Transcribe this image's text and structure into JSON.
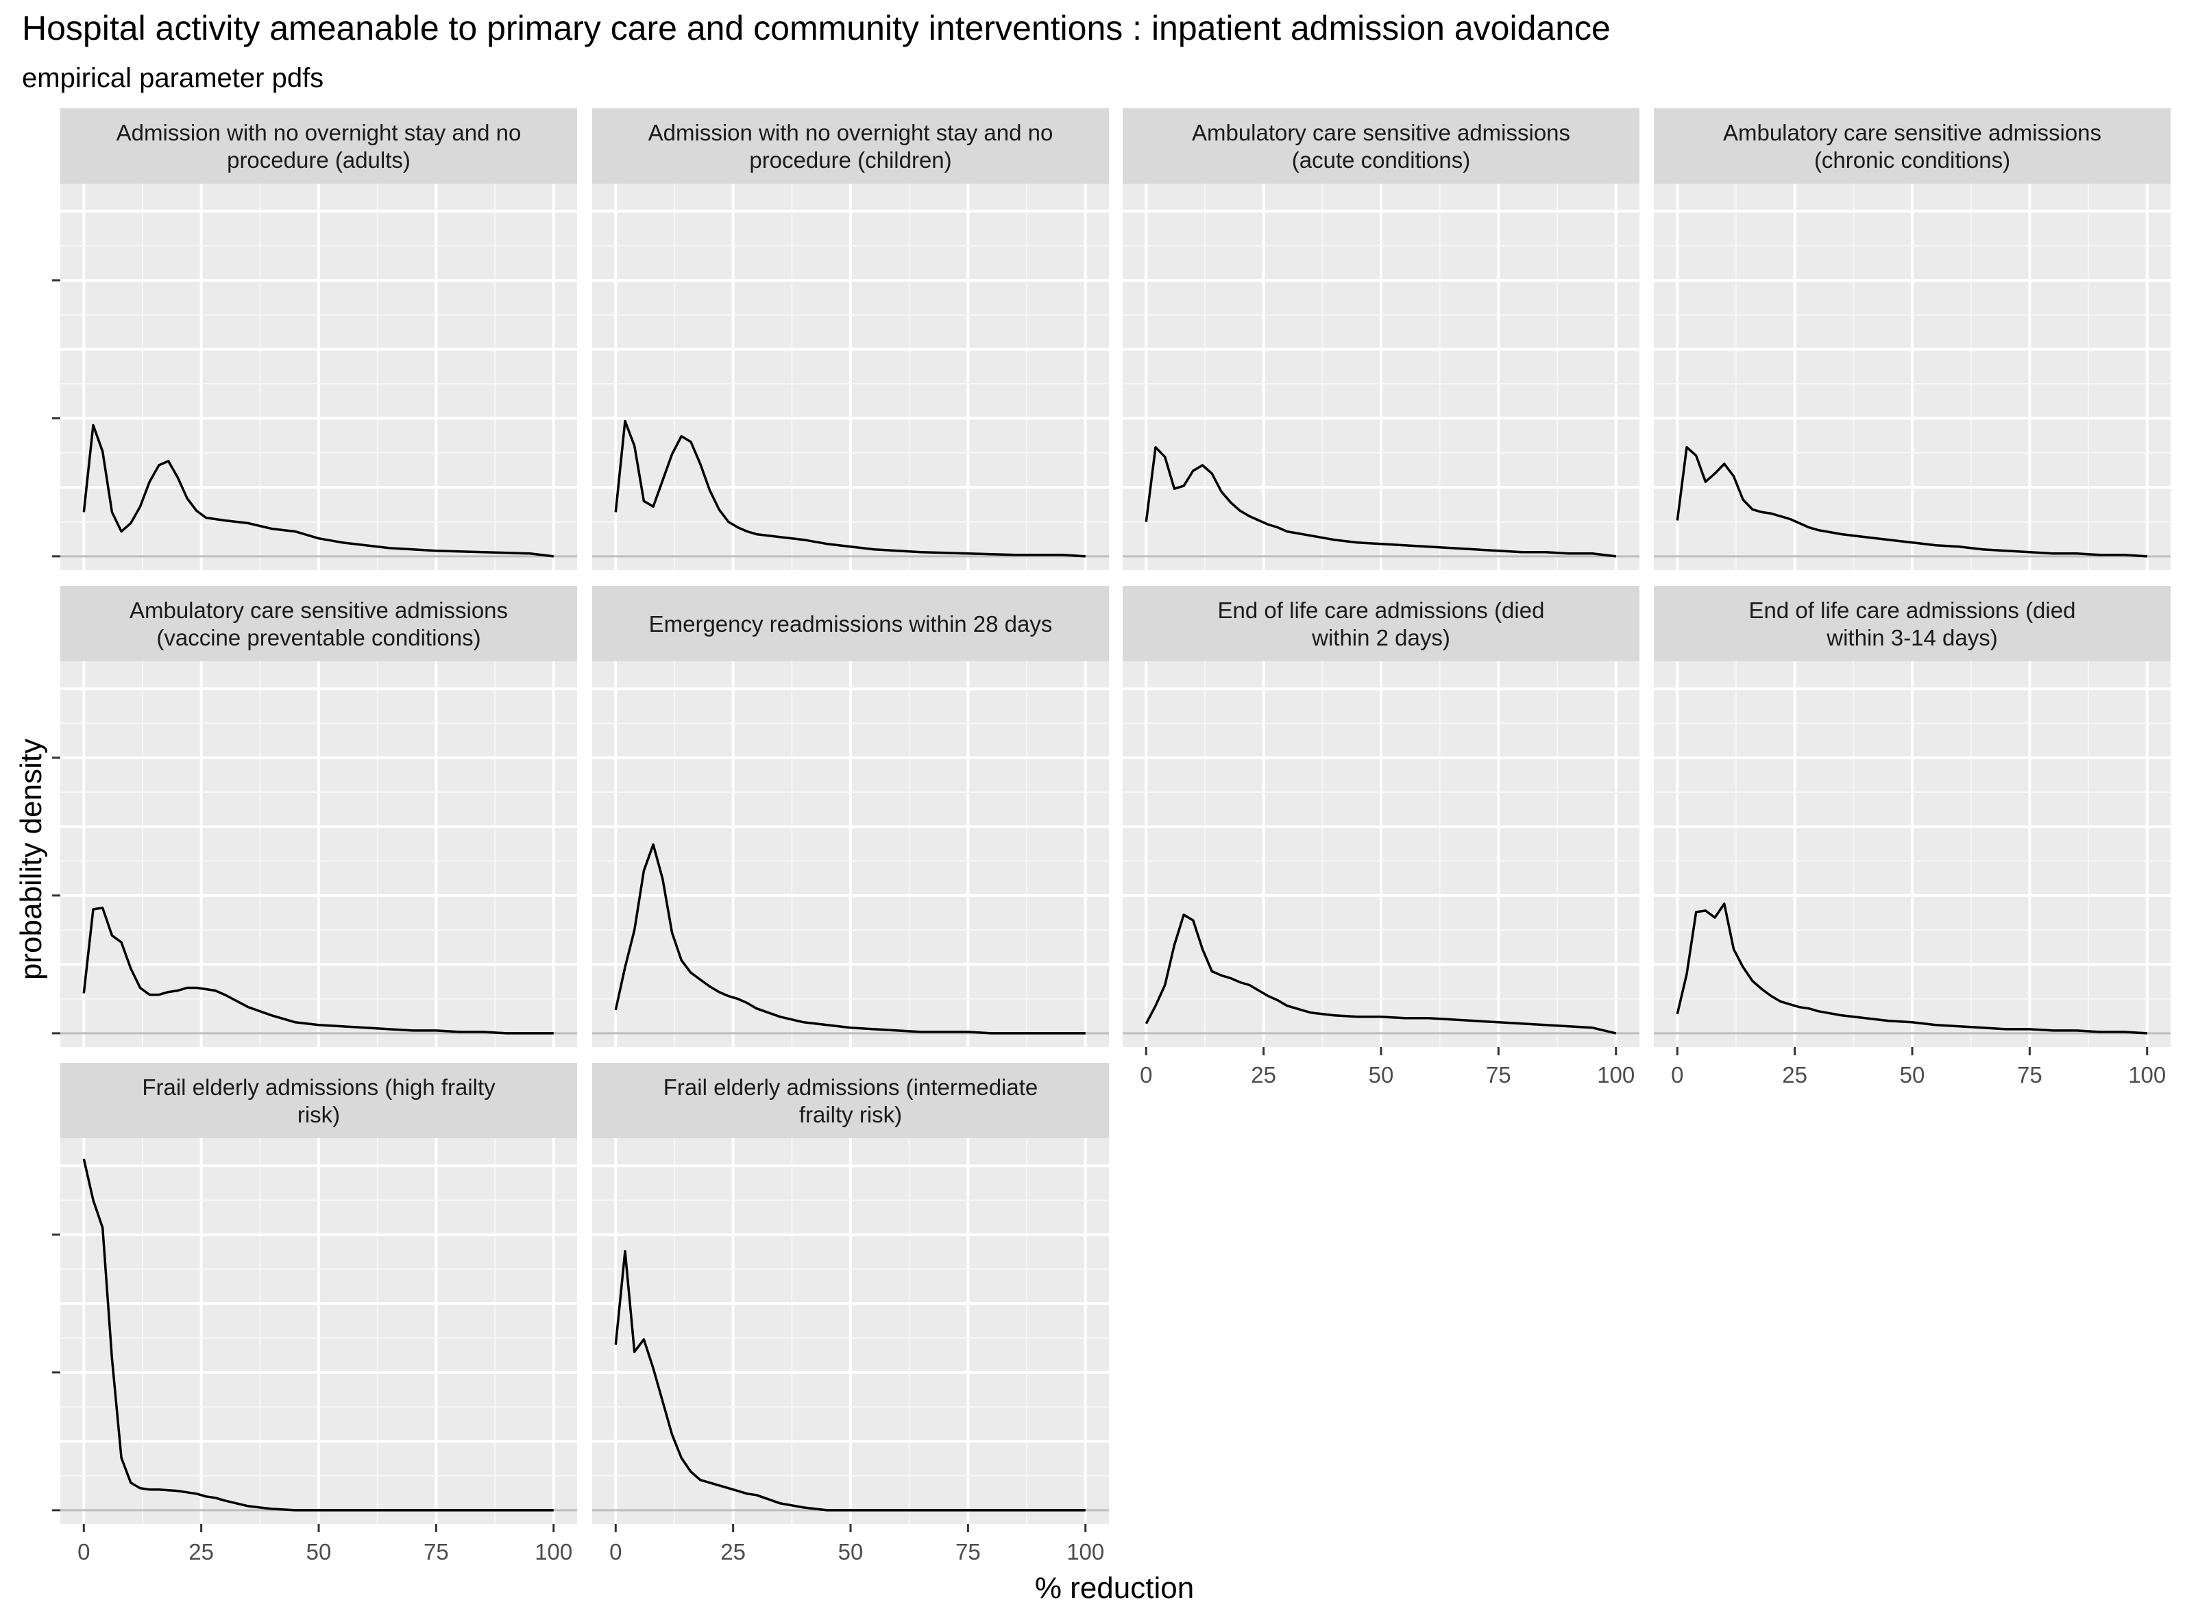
{
  "chart_data": {
    "type": "line",
    "title": "Hospital activity ameanable to primary care and community interventions : inpatient admission avoidance",
    "subtitle": "empirical parameter pdfs",
    "xlabel": "% reduction",
    "ylabel": "probability density",
    "xlim": [
      0,
      100
    ],
    "x_ticks": [
      0,
      25,
      50,
      75,
      100
    ],
    "x_tick_labels": [
      "0",
      "25",
      "50",
      "75",
      "100"
    ],
    "y_tick_labels_shown": false,
    "grid": true,
    "ncol": 4,
    "panels": [
      {
        "strip": [
          "Admission with no overnight stay and no",
          "procedure (adults)"
        ],
        "ylim": [
          -0.1,
          2.7
        ],
        "x": [
          0,
          2,
          4,
          6,
          8,
          10,
          12,
          14,
          16,
          18,
          20,
          22,
          24,
          26,
          28,
          30,
          35,
          40,
          45,
          50,
          55,
          60,
          65,
          70,
          75,
          80,
          85,
          90,
          95,
          100
        ],
        "y": [
          0.32,
          0.95,
          0.76,
          0.32,
          0.18,
          0.24,
          0.36,
          0.54,
          0.66,
          0.69,
          0.57,
          0.42,
          0.33,
          0.28,
          0.27,
          0.26,
          0.24,
          0.2,
          0.18,
          0.13,
          0.1,
          0.08,
          0.06,
          0.05,
          0.04,
          0.035,
          0.03,
          0.025,
          0.02,
          0.0
        ]
      },
      {
        "strip": [
          "Admission with no overnight stay and no",
          "procedure (children)"
        ],
        "ylim": [
          -0.1,
          2.7
        ],
        "x": [
          0,
          2,
          4,
          6,
          8,
          10,
          12,
          14,
          16,
          18,
          20,
          22,
          24,
          26,
          28,
          30,
          35,
          40,
          45,
          50,
          55,
          60,
          65,
          70,
          75,
          80,
          85,
          90,
          95,
          100
        ],
        "y": [
          0.32,
          0.98,
          0.8,
          0.4,
          0.36,
          0.55,
          0.74,
          0.87,
          0.83,
          0.67,
          0.48,
          0.34,
          0.25,
          0.21,
          0.18,
          0.16,
          0.14,
          0.12,
          0.09,
          0.07,
          0.05,
          0.04,
          0.03,
          0.025,
          0.02,
          0.015,
          0.01,
          0.01,
          0.01,
          0.0
        ]
      },
      {
        "strip": [
          "Ambulatory care sensitive admissions",
          "(acute conditions)"
        ],
        "ylim": [
          -0.1,
          2.7
        ],
        "x": [
          0,
          2,
          4,
          6,
          8,
          10,
          12,
          14,
          16,
          18,
          20,
          22,
          24,
          26,
          28,
          30,
          35,
          40,
          45,
          50,
          55,
          60,
          65,
          70,
          75,
          80,
          85,
          90,
          95,
          100
        ],
        "y": [
          0.25,
          0.79,
          0.72,
          0.49,
          0.51,
          0.62,
          0.66,
          0.6,
          0.47,
          0.39,
          0.33,
          0.29,
          0.26,
          0.23,
          0.21,
          0.18,
          0.15,
          0.12,
          0.1,
          0.09,
          0.08,
          0.07,
          0.06,
          0.05,
          0.04,
          0.03,
          0.03,
          0.02,
          0.02,
          0.0
        ]
      },
      {
        "strip": [
          "Ambulatory care sensitive admissions",
          "(chronic conditions)"
        ],
        "ylim": [
          -0.1,
          2.7
        ],
        "x": [
          0,
          2,
          4,
          6,
          8,
          10,
          12,
          14,
          16,
          18,
          20,
          22,
          24,
          26,
          28,
          30,
          35,
          40,
          45,
          50,
          55,
          60,
          65,
          70,
          75,
          80,
          85,
          90,
          95,
          100
        ],
        "y": [
          0.26,
          0.79,
          0.73,
          0.54,
          0.6,
          0.67,
          0.58,
          0.41,
          0.34,
          0.32,
          0.31,
          0.29,
          0.27,
          0.24,
          0.21,
          0.19,
          0.16,
          0.14,
          0.12,
          0.1,
          0.08,
          0.07,
          0.05,
          0.04,
          0.03,
          0.02,
          0.02,
          0.01,
          0.01,
          0.0
        ]
      },
      {
        "strip": [
          "Ambulatory care sensitive admissions",
          "(vaccine preventable conditions)"
        ],
        "ylim": [
          -0.1,
          2.7
        ],
        "x": [
          0,
          2,
          4,
          6,
          8,
          10,
          12,
          14,
          16,
          18,
          20,
          22,
          24,
          26,
          28,
          30,
          35,
          40,
          45,
          50,
          55,
          60,
          65,
          70,
          75,
          80,
          85,
          90,
          95,
          100
        ],
        "y": [
          0.29,
          0.9,
          0.91,
          0.71,
          0.66,
          0.47,
          0.33,
          0.28,
          0.28,
          0.3,
          0.31,
          0.33,
          0.33,
          0.32,
          0.31,
          0.28,
          0.19,
          0.13,
          0.08,
          0.06,
          0.05,
          0.04,
          0.03,
          0.02,
          0.02,
          0.01,
          0.01,
          0.0,
          0.0,
          0.0
        ]
      },
      {
        "strip": [
          "Emergency readmissions within 28 days"
        ],
        "ylim": [
          -0.1,
          2.7
        ],
        "x": [
          0,
          2,
          4,
          6,
          8,
          10,
          12,
          14,
          16,
          18,
          20,
          22,
          24,
          26,
          28,
          30,
          35,
          40,
          45,
          50,
          55,
          60,
          65,
          70,
          75,
          80,
          85,
          90,
          95,
          100
        ],
        "y": [
          0.17,
          0.48,
          0.75,
          1.18,
          1.37,
          1.12,
          0.73,
          0.53,
          0.44,
          0.39,
          0.34,
          0.3,
          0.27,
          0.25,
          0.22,
          0.18,
          0.12,
          0.08,
          0.06,
          0.04,
          0.03,
          0.02,
          0.01,
          0.01,
          0.01,
          0.0,
          0.0,
          0.0,
          0.0,
          0.0
        ]
      },
      {
        "strip": [
          "End of life care admissions (died",
          "within 2 days)"
        ],
        "ylim": [
          -0.1,
          2.7
        ],
        "x": [
          0,
          2,
          4,
          6,
          8,
          10,
          12,
          14,
          16,
          18,
          20,
          22,
          24,
          26,
          28,
          30,
          35,
          40,
          45,
          50,
          55,
          60,
          65,
          70,
          75,
          80,
          85,
          90,
          95,
          100
        ],
        "y": [
          0.07,
          0.2,
          0.35,
          0.64,
          0.86,
          0.82,
          0.61,
          0.45,
          0.42,
          0.4,
          0.37,
          0.35,
          0.31,
          0.27,
          0.24,
          0.2,
          0.15,
          0.13,
          0.12,
          0.12,
          0.11,
          0.11,
          0.1,
          0.09,
          0.08,
          0.07,
          0.06,
          0.05,
          0.04,
          0.0
        ]
      },
      {
        "strip": [
          "End of life care admissions (died",
          "within 3-14 days)"
        ],
        "ylim": [
          -0.1,
          2.7
        ],
        "x": [
          0,
          2,
          4,
          6,
          8,
          10,
          12,
          14,
          16,
          18,
          20,
          22,
          24,
          26,
          28,
          30,
          35,
          40,
          45,
          50,
          55,
          60,
          65,
          70,
          75,
          80,
          85,
          90,
          95,
          100
        ],
        "y": [
          0.14,
          0.43,
          0.88,
          0.89,
          0.84,
          0.94,
          0.61,
          0.48,
          0.38,
          0.32,
          0.27,
          0.23,
          0.21,
          0.19,
          0.18,
          0.16,
          0.13,
          0.11,
          0.09,
          0.08,
          0.06,
          0.05,
          0.04,
          0.03,
          0.03,
          0.02,
          0.02,
          0.01,
          0.01,
          0.0
        ]
      },
      {
        "strip": [
          "Frail elderly admissions (high frailty",
          "risk)"
        ],
        "ylim": [
          -0.1,
          2.7
        ],
        "x": [
          0,
          2,
          4,
          6,
          8,
          10,
          12,
          14,
          16,
          18,
          20,
          22,
          24,
          26,
          28,
          30,
          35,
          40,
          45,
          50,
          55,
          60,
          65,
          70,
          75,
          80,
          85,
          90,
          95,
          100
        ],
        "y": [
          2.55,
          2.25,
          2.05,
          1.1,
          0.38,
          0.2,
          0.16,
          0.15,
          0.15,
          0.145,
          0.14,
          0.13,
          0.12,
          0.1,
          0.09,
          0.07,
          0.03,
          0.01,
          0.0,
          0.0,
          0.0,
          0.0,
          0.0,
          0.0,
          0.0,
          0.0,
          0.0,
          0.0,
          0.0,
          0.0
        ]
      },
      {
        "strip": [
          "Frail elderly admissions (intermediate",
          "frailty risk)"
        ],
        "ylim": [
          -0.1,
          2.7
        ],
        "x": [
          0,
          2,
          4,
          6,
          8,
          10,
          12,
          14,
          16,
          18,
          20,
          22,
          24,
          26,
          28,
          30,
          35,
          40,
          45,
          50,
          55,
          60,
          65,
          70,
          75,
          80,
          85,
          90,
          95,
          100
        ],
        "y": [
          1.2,
          1.88,
          1.15,
          1.24,
          1.03,
          0.79,
          0.55,
          0.38,
          0.28,
          0.22,
          0.2,
          0.18,
          0.16,
          0.14,
          0.12,
          0.11,
          0.05,
          0.02,
          0.0,
          0.0,
          0.0,
          0.0,
          0.0,
          0.0,
          0.0,
          0.0,
          0.0,
          0.0,
          0.0,
          0.0
        ]
      }
    ]
  }
}
